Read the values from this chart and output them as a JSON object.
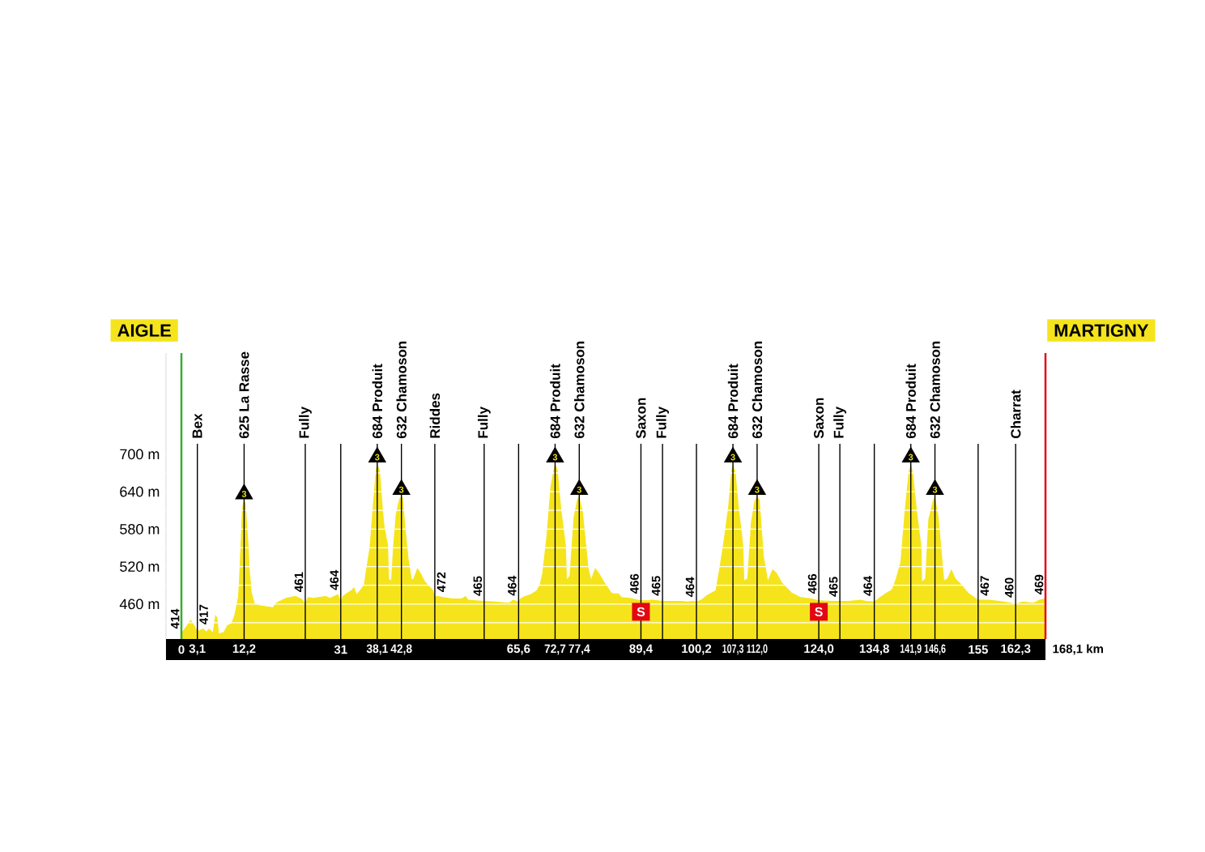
{
  "chart_data": {
    "type": "area",
    "color": "#f5e41c",
    "x": [
      0,
      1.0,
      1.8,
      2.6,
      3.1,
      4.3,
      4.8,
      5.4,
      6.1,
      6.6,
      7.0,
      7.3,
      8.2,
      8.9,
      9.7,
      10.3,
      11.0,
      11.2,
      11.5,
      11.8,
      12.0,
      12.2,
      12.5,
      12.8,
      13.1,
      13.3,
      13.7,
      14.3,
      15.4,
      17.8,
      18.4,
      20.3,
      22.2,
      23.5,
      24.1,
      24.6,
      25.7,
      26.7,
      28.1,
      28.9,
      29.7,
      30.5,
      31,
      31.4,
      32.2,
      33.0,
      33.6,
      34.1,
      34.7,
      35.5,
      35.9,
      36.6,
      37.2,
      37.8,
      38.1,
      38.6,
      39.2,
      39.5,
      40.2,
      40.4,
      40.8,
      41.2,
      41.7,
      42.4,
      42.8,
      43.1,
      43.6,
      44.2,
      44.8,
      45.1,
      45.9,
      46.6,
      47.4,
      48.0,
      49.0,
      49.3,
      49.9,
      50.9,
      52.8,
      54.5,
      55.3,
      55.8,
      58.9,
      61.0,
      63.7,
      64.5,
      65.6,
      65.9,
      66.9,
      68.0,
      69.1,
      69.7,
      70.2,
      71.0,
      71.8,
      72.4,
      72.7,
      73.2,
      73.9,
      74.8,
      75.0,
      75.5,
      76.3,
      77.0,
      77.4,
      78.1,
      79.2,
      79.7,
      80.5,
      81.3,
      82.4,
      83.7,
      84.3,
      85.1,
      85.6,
      87.3,
      89.4,
      91.7,
      93.6,
      95.6,
      97.3,
      98.4,
      99.5,
      100.2,
      101.1,
      102.2,
      103.0,
      103.9,
      104.7,
      105.6,
      106.4,
      107.0,
      107.3,
      107.8,
      108.4,
      109.3,
      109.5,
      110.1,
      110.8,
      111.5,
      112.0,
      112.5,
      113.3,
      114.1,
      115.0,
      115.8,
      116.9,
      117.7,
      118.8,
      120.5,
      122.7,
      124.0,
      127.1,
      128.1,
      129.8,
      132.1,
      133.2,
      134.8,
      135.9,
      137.3,
      138.2,
      139.0,
      139.9,
      140.7,
      141.5,
      141.9,
      142.3,
      143.1,
      144.0,
      144.1,
      144.7,
      145.3,
      146.2,
      146.6,
      147.3,
      148.4,
      149.0,
      149.8,
      150.6,
      151.7,
      153.1,
      155,
      157.0,
      159.2,
      161.4,
      162.3,
      163.6,
      165.8,
      166.9,
      168.1
    ],
    "values": [
      414,
      425,
      435,
      425,
      417,
      421,
      416,
      421,
      415,
      443,
      438,
      413,
      415,
      426,
      429,
      442,
      471,
      496,
      554,
      612,
      622,
      625,
      622,
      585,
      550,
      514,
      478,
      460,
      458,
      455,
      462,
      470,
      473,
      468,
      461,
      471,
      470,
      471,
      473,
      470,
      473,
      476,
      464,
      473,
      478,
      482,
      487,
      476,
      482,
      491,
      514,
      550,
      612,
      675,
      684,
      675,
      612,
      585,
      554,
      500,
      498,
      554,
      603,
      630,
      632,
      630,
      581,
      532,
      500,
      500,
      518,
      509,
      496,
      491,
      482,
      472,
      473,
      471,
      469,
      469,
      473,
      467,
      465,
      464,
      462,
      467,
      464,
      469,
      473,
      476,
      482,
      491,
      509,
      567,
      648,
      675,
      684,
      675,
      612,
      554,
      500,
      505,
      599,
      628,
      632,
      608,
      518,
      500,
      518,
      509,
      494,
      478,
      477,
      477,
      471,
      470,
      466,
      467,
      465,
      465,
      465,
      464,
      465,
      464,
      467,
      474,
      478,
      482,
      519,
      568,
      618,
      675,
      684,
      672,
      618,
      555,
      498,
      501,
      591,
      626,
      632,
      627,
      537,
      498,
      516,
      510,
      494,
      487,
      478,
      471,
      469,
      466,
      465,
      465,
      465,
      467,
      465,
      464,
      471,
      479,
      483,
      501,
      528,
      609,
      674,
      684,
      672,
      609,
      550,
      496,
      501,
      595,
      626,
      632,
      600,
      498,
      501,
      516,
      501,
      492,
      478,
      467,
      467,
      465,
      462,
      460,
      464,
      462,
      467,
      469
    ],
    "value_labels": [
      "414",
      null,
      null,
      null,
      "417",
      null,
      null,
      null,
      null,
      null,
      null,
      null,
      null,
      null,
      null,
      null,
      null,
      null,
      null,
      null,
      null,
      null,
      null,
      null,
      null,
      null,
      null,
      null,
      null,
      null,
      null,
      null,
      null,
      null,
      "461",
      null,
      null,
      null,
      null,
      null,
      null,
      null,
      "464",
      null,
      null,
      null,
      null,
      null,
      null,
      null,
      null,
      null,
      null,
      null,
      null,
      null,
      null,
      null,
      null,
      null,
      null,
      null,
      null,
      null,
      null,
      null,
      null,
      null,
      null,
      null,
      null,
      null,
      null,
      null,
      null,
      "472",
      null,
      null,
      null,
      null,
      null,
      null,
      "465",
      null,
      null,
      null,
      "464",
      null,
      null,
      null,
      null,
      null,
      null,
      null,
      null,
      null,
      null,
      null,
      null,
      null,
      null,
      null,
      null,
      null,
      null,
      null,
      null,
      null,
      null,
      null,
      null,
      null,
      null,
      null,
      null,
      null,
      "466",
      null,
      "465",
      null,
      null,
      null,
      null,
      "464",
      null,
      null,
      null,
      null,
      null,
      null,
      null,
      null,
      null,
      null,
      null,
      null,
      null,
      null,
      null,
      null,
      null,
      null,
      null,
      null,
      null,
      null,
      null,
      null,
      null,
      null,
      null,
      "466",
      null,
      "465",
      null,
      null,
      null,
      "464",
      null,
      null,
      null,
      null,
      null,
      null,
      null,
      null,
      null,
      null,
      null,
      null,
      null,
      null,
      null,
      null,
      null,
      null,
      null,
      null,
      null,
      null,
      null,
      "467",
      null,
      null,
      null,
      "460",
      null,
      null,
      null,
      "469"
    ],
    "xlabel": "168,1 km",
    "xlim": [
      -3,
      168.1
    ],
    "xticks": [
      0,
      {
        "value": 3.1,
        "label": "3,1"
      },
      {
        "value": 12.2,
        "label": "12,2"
      },
      31,
      {
        "value": 38.1,
        "label": "38,1"
      },
      {
        "value": 42.8,
        "label": "42,8"
      },
      {
        "value": 65.6,
        "label": "65,6"
      },
      {
        "value": 72.7,
        "label": "72,7"
      },
      {
        "value": 77.4,
        "label": "77,4"
      },
      {
        "value": 89.4,
        "label": "89,4"
      },
      {
        "value": 100.2,
        "label": "100,2"
      },
      {
        "value": 107.3,
        "label": "107,3"
      },
      {
        "value": 112.0,
        "label": "112,0"
      },
      {
        "value": 124.0,
        "label": "124,0"
      },
      {
        "value": 134.8,
        "label": "134,8"
      },
      {
        "value": 141.9,
        "label": "141,9"
      },
      {
        "value": 146.6,
        "label": "146,6"
      },
      155,
      {
        "value": 162.3,
        "label": "162,3"
      }
    ],
    "ylim": [
      404,
      862
    ],
    "yticks": [
      {
        "value": 430,
        "label": null
      },
      {
        "value": 460,
        "label": "460 m"
      },
      {
        "value": 490,
        "label": null
      },
      {
        "value": 520,
        "label": "520 m"
      },
      {
        "value": 550,
        "label": null
      },
      {
        "value": 580,
        "label": "580 m"
      },
      {
        "value": 610,
        "label": null
      },
      {
        "value": 640,
        "label": "640 m"
      },
      {
        "value": 670,
        "label": null
      },
      {
        "value": 700,
        "label": "700 m"
      }
    ],
    "grid": "y",
    "ref_lines": [
      {
        "axis": "x",
        "value": 0,
        "label": "AIGLE",
        "color": "#3aaa35"
      },
      {
        "axis": "x",
        "value": 3.1,
        "label": "Bex"
      },
      {
        "axis": "x",
        "value": 12.2,
        "label": "625 La Rasse"
      },
      {
        "axis": "x",
        "value": 24.1,
        "label": "Fully"
      },
      {
        "axis": "x",
        "value": 31
      },
      {
        "axis": "x",
        "value": 38.1,
        "label": "684 Produit"
      },
      {
        "axis": "x",
        "value": 42.8,
        "label": "632 Chamoson"
      },
      {
        "axis": "x",
        "value": 49.3,
        "label": "Riddes"
      },
      {
        "axis": "x",
        "value": 58.9,
        "label": "Fully"
      },
      {
        "axis": "x",
        "value": 65.6
      },
      {
        "axis": "x",
        "value": 72.7,
        "label": "684 Produit"
      },
      {
        "axis": "x",
        "value": 77.4,
        "label": "632 Chamoson"
      },
      {
        "axis": "x",
        "value": 89.4,
        "label": "Saxon"
      },
      {
        "axis": "x",
        "value": 93.6,
        "label": "Fully"
      },
      {
        "axis": "x",
        "value": 100.2
      },
      {
        "axis": "x",
        "value": 107.3,
        "label": "684 Produit"
      },
      {
        "axis": "x",
        "value": 112.0,
        "label": "632 Chamoson"
      },
      {
        "axis": "x",
        "value": 124.0,
        "label": "Saxon"
      },
      {
        "axis": "x",
        "value": 128.1,
        "label": "Fully"
      },
      {
        "axis": "x",
        "value": 134.8
      },
      {
        "axis": "x",
        "value": 141.9,
        "label": "684 Produit"
      },
      {
        "axis": "x",
        "value": 146.6,
        "label": "632 Chamoson"
      },
      {
        "axis": "x",
        "value": 155
      },
      {
        "axis": "x",
        "value": 162.3,
        "label": "Charrat"
      },
      {
        "axis": "x",
        "value": 168.1,
        "label": "MARTIGNY",
        "color": "#e30613"
      }
    ],
    "annotations": [
      {
        "text": "3",
        "x": 12.2,
        "y": 625
      },
      {
        "text": "3",
        "x": 38.1,
        "y": 684
      },
      {
        "text": "3",
        "x": 42.8,
        "y": 632
      },
      {
        "text": "3",
        "x": 72.7,
        "y": 684
      },
      {
        "text": "3",
        "x": 77.4,
        "y": 632
      },
      {
        "text": "3",
        "x": 107.3,
        "y": 684
      },
      {
        "text": "3",
        "x": 112.0,
        "y": 632
      },
      {
        "text": "3",
        "x": 141.9,
        "y": 684
      },
      {
        "text": "3",
        "x": 146.6,
        "y": 632
      },
      {
        "text": "S",
        "x": 89.4,
        "y": 466
      },
      {
        "text": "S",
        "x": 124.0,
        "y": 466
      }
    ]
  }
}
